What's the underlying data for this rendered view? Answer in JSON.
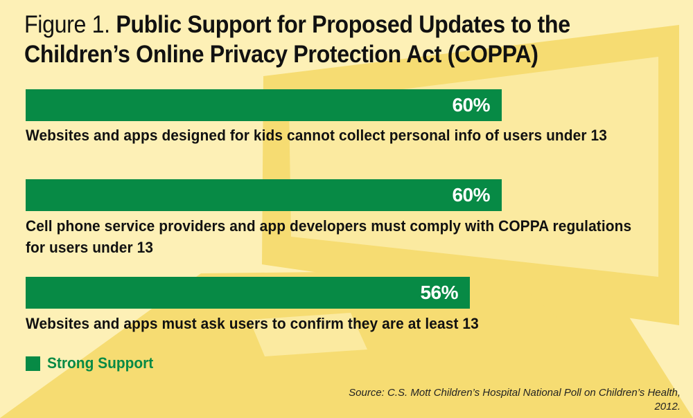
{
  "colors": {
    "background": "#fdf0b6",
    "laptop_fill": "#f6dc72",
    "laptop_screen": "#fbeaa0",
    "bar": "#078a45",
    "bar_text": "#ffffff",
    "label_text": "#111111"
  },
  "figure": {
    "prefix": "Figure 1.",
    "title_line1": "Public Support for Proposed Updates to the",
    "title_line2": "Children’s Online Privacy Protection Act (COPPA)"
  },
  "chart_data": {
    "type": "bar",
    "orientation": "horizontal",
    "title": "Public Support for Proposed Updates to the Children’s Online Privacy Protection Act (COPPA)",
    "categories": [
      "Websites and apps designed for kids cannot collect personal info of users under 13",
      "Cell phone service providers and app developers must comply with COPPA regulations for users under 13",
      "Websites and apps must ask users to confirm they are at least 13"
    ],
    "series": [
      {
        "name": "Strong Support",
        "values": [
          60,
          60,
          56
        ],
        "value_labels": [
          "60%",
          "60%",
          "56%"
        ]
      }
    ],
    "xlim": [
      0,
      100
    ],
    "grid": false,
    "legend": "bottom-left"
  },
  "legend": {
    "label": "Strong Support"
  },
  "source": "Source: C.S. Mott Children’s Hospital National Poll on Children’s Health, 2012."
}
